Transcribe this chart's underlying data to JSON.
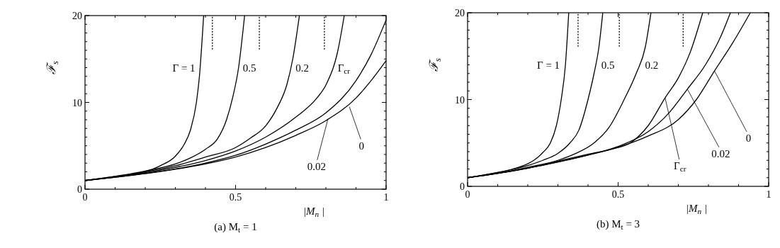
{
  "chart_data": [
    {
      "type": "line",
      "title": "(a) M$_{t}$ = 1",
      "xlabel": "|M$_{n}$|",
      "ylabel": "ℱ$_{s}$",
      "xlim": [
        0,
        1
      ],
      "ylim": [
        0,
        20
      ],
      "xticks": [
        0,
        {
          "value": 0.1,
          "label": null
        },
        {
          "value": 0.2,
          "label": null
        },
        {
          "value": 0.3,
          "label": null
        },
        {
          "value": 0.4,
          "label": null
        },
        0.5,
        {
          "value": 0.6,
          "label": null
        },
        {
          "value": 0.7,
          "label": null
        },
        {
          "value": 0.8,
          "label": null
        },
        {
          "value": 0.9,
          "label": null
        },
        1
      ],
      "yticks": [
        0,
        {
          "value": 1,
          "label": null
        },
        {
          "value": 2,
          "label": null
        },
        {
          "value": 3,
          "label": null
        },
        {
          "value": 4,
          "label": null
        },
        {
          "value": 5,
          "label": null
        },
        {
          "value": 6,
          "label": null
        },
        {
          "value": 7,
          "label": null
        },
        {
          "value": 8,
          "label": null
        },
        {
          "value": 9,
          "label": null
        },
        10,
        {
          "value": 11,
          "label": null
        },
        {
          "value": 12,
          "label": null
        },
        {
          "value": 13,
          "label": null
        },
        {
          "value": 14,
          "label": null
        },
        {
          "value": 15,
          "label": null
        },
        {
          "value": 16,
          "label": null
        },
        {
          "value": 17,
          "label": null
        },
        {
          "value": 18,
          "label": null
        },
        {
          "value": 19,
          "label": null
        },
        20
      ],
      "series": [
        {
          "color": "#000000",
          "x": [
            0,
            0.1,
            0.2,
            0.25,
            0.3,
            0.33,
            0.35,
            0.37,
            0.38,
            0.394
          ],
          "values": [
            1,
            1.4,
            2.0,
            2.7,
            3.8,
            5.2,
            6.8,
            10,
            13,
            20
          ]
        },
        {
          "color": "#000000",
          "x": [
            0,
            0.2,
            0.3,
            0.35,
            0.4,
            0.44,
            0.47,
            0.49,
            0.51,
            0.53
          ],
          "values": [
            1,
            2.1,
            2.9,
            3.6,
            4.6,
            5.8,
            8,
            10.5,
            14,
            20
          ]
        },
        {
          "color": "#000000",
          "x": [
            0,
            0.2,
            0.3,
            0.4,
            0.5,
            0.55,
            0.6,
            0.64,
            0.67,
            0.69,
            0.712
          ],
          "values": [
            1,
            2.0,
            2.7,
            3.7,
            4.8,
            5.9,
            7.3,
            9.5,
            12,
            15,
            20
          ]
        },
        {
          "color": "#000000",
          "x": [
            0,
            0.2,
            0.4,
            0.5,
            0.6,
            0.7,
            0.77,
            0.8,
            0.84,
            0.861
          ],
          "values": [
            1,
            1.9,
            3.3,
            4.4,
            6.0,
            8.3,
            10.5,
            12,
            16,
            20
          ]
        },
        {
          "color": "#000000",
          "x": [
            0,
            0.2,
            0.4,
            0.5,
            0.6,
            0.7,
            0.8,
            0.9,
            0.95,
            1
          ],
          "values": [
            1,
            1.8,
            3.0,
            3.9,
            5.2,
            6.8,
            8.8,
            12.5,
            15.5,
            19.5
          ]
        },
        {
          "color": "#000000",
          "x": [
            0,
            0.2,
            0.4,
            0.5,
            0.6,
            0.7,
            0.8,
            0.9,
            0.95,
            1
          ],
          "values": [
            1,
            1.8,
            2.9,
            3.7,
            4.8,
            6.2,
            7.9,
            10.5,
            12.5,
            14.8
          ]
        },
        {
          "color": "#000000",
          "line_style": "dotted",
          "x": [
            0.423,
            0.423
          ],
          "values": [
            16.1,
            20
          ]
        },
        {
          "color": "#000000",
          "line_style": "dotted",
          "x": [
            0.579,
            0.579
          ],
          "values": [
            16.1,
            20
          ]
        },
        {
          "color": "#000000",
          "line_style": "dotted",
          "x": [
            0.795,
            0.795
          ],
          "values": [
            16.1,
            20
          ]
        }
      ],
      "annotations": [
        {
          "text": "Γ = 1",
          "x": 0.385,
          "y": 14
        },
        {
          "text": "0.5",
          "x": 0.51,
          "y": 14
        },
        {
          "text": "0.2",
          "x": 0.685,
          "y": 14
        },
        {
          "text": "Γ$_{cr}$",
          "x": 0.825,
          "y": 14
        },
        {
          "text": "0.02",
          "x": 0.807,
          "y": 8.1
        },
        {
          "text": "0",
          "x": 0.878,
          "y": 9.5
        }
      ]
    },
    {
      "type": "line",
      "title": "(b) M$_{t}$ = 3",
      "xlabel": "|M$_{n}$|",
      "ylabel": "ℱ$_{s}$",
      "xlim": [
        0,
        1
      ],
      "ylim": [
        0,
        20
      ],
      "xticks": [
        0,
        {
          "value": 0.1,
          "label": null
        },
        {
          "value": 0.2,
          "label": null
        },
        {
          "value": 0.3,
          "label": null
        },
        {
          "value": 0.4,
          "label": null
        },
        0.5,
        {
          "value": 0.6,
          "label": null
        },
        {
          "value": 0.7,
          "label": null
        },
        {
          "value": 0.8,
          "label": null
        },
        {
          "value": 0.9,
          "label": null
        },
        1
      ],
      "yticks": [
        0,
        {
          "value": 1,
          "label": null
        },
        {
          "value": 2,
          "label": null
        },
        {
          "value": 3,
          "label": null
        },
        {
          "value": 4,
          "label": null
        },
        {
          "value": 5,
          "label": null
        },
        {
          "value": 6,
          "label": null
        },
        {
          "value": 7,
          "label": null
        },
        {
          "value": 8,
          "label": null
        },
        {
          "value": 9,
          "label": null
        },
        10,
        {
          "value": 11,
          "label": null
        },
        {
          "value": 12,
          "label": null
        },
        {
          "value": 13,
          "label": null
        },
        {
          "value": 14,
          "label": null
        },
        {
          "value": 15,
          "label": null
        },
        {
          "value": 16,
          "label": null
        },
        {
          "value": 17,
          "label": null
        },
        {
          "value": 18,
          "label": null
        },
        {
          "value": 19,
          "label": null
        },
        20
      ],
      "series": [
        {
          "color": "#000000",
          "x": [
            0,
            0.1,
            0.15,
            0.2,
            0.22,
            0.25,
            0.275,
            0.295,
            0.311,
            0.325,
            0.336
          ],
          "values": [
            1,
            1.6,
            2.0,
            2.6,
            3.0,
            3.9,
            5,
            7,
            10,
            14,
            20
          ]
        },
        {
          "color": "#000000",
          "x": [
            0,
            0.1,
            0.2,
            0.25,
            0.3,
            0.34,
            0.37,
            0.4,
            0.42,
            0.436,
            0.449
          ],
          "values": [
            1,
            1.6,
            2.4,
            3.0,
            3.8,
            5,
            6.5,
            10,
            13,
            16,
            20
          ]
        },
        {
          "color": "#000000",
          "x": [
            0,
            0.1,
            0.2,
            0.3,
            0.36,
            0.42,
            0.47,
            0.52,
            0.56,
            0.59,
            0.609
          ],
          "values": [
            1,
            1.5,
            2.2,
            3.0,
            3.8,
            5,
            6.8,
            10,
            13,
            16,
            20
          ]
        },
        {
          "color": "#000000",
          "x": [
            0,
            0.1,
            0.2,
            0.3,
            0.4,
            0.48,
            0.54,
            0.6,
            0.656,
            0.7,
            0.74,
            0.781
          ],
          "values": [
            1,
            1.5,
            2.1,
            2.9,
            3.7,
            4.3,
            5,
            7,
            10.2,
            12.5,
            15.5,
            20
          ]
        },
        {
          "color": "#000000",
          "x": [
            0,
            0.1,
            0.2,
            0.3,
            0.4,
            0.5,
            0.6,
            0.67,
            0.73,
            0.79,
            0.84,
            0.873
          ],
          "values": [
            1,
            1.5,
            2.1,
            2.8,
            3.6,
            4.6,
            6.3,
            8.5,
            11.2,
            14,
            17.2,
            20
          ]
        },
        {
          "color": "#000000",
          "x": [
            0,
            0.1,
            0.2,
            0.3,
            0.4,
            0.5,
            0.6,
            0.7,
            0.76,
            0.82,
            0.88,
            0.939
          ],
          "values": [
            1,
            1.5,
            2.1,
            2.8,
            3.6,
            4.5,
            5.8,
            7.7,
            10,
            13.3,
            16.5,
            20
          ]
        },
        {
          "color": "#000000",
          "line_style": "dotted",
          "x": [
            0.367,
            0.367
          ],
          "values": [
            16.1,
            20
          ]
        },
        {
          "color": "#000000",
          "line_style": "dotted",
          "x": [
            0.504,
            0.504
          ],
          "values": [
            16.1,
            20
          ]
        },
        {
          "color": "#000000",
          "line_style": "dotted",
          "x": [
            0.716,
            0.716
          ],
          "values": [
            16.1,
            20
          ]
        }
      ],
      "annotations": [
        {
          "text": "Γ = 1",
          "x": 0.325,
          "y": 14
        },
        {
          "text": "0.5",
          "x": 0.43,
          "y": 14
        },
        {
          "text": "0.2",
          "x": 0.575,
          "y": 14
        },
        {
          "text": "Γ$_{cr}$",
          "x": 0.656,
          "y": 10.2
        },
        {
          "text": "0.02",
          "x": 0.73,
          "y": 11.2
        },
        {
          "text": "0",
          "x": 0.82,
          "y": 13.3
        }
      ]
    }
  ]
}
